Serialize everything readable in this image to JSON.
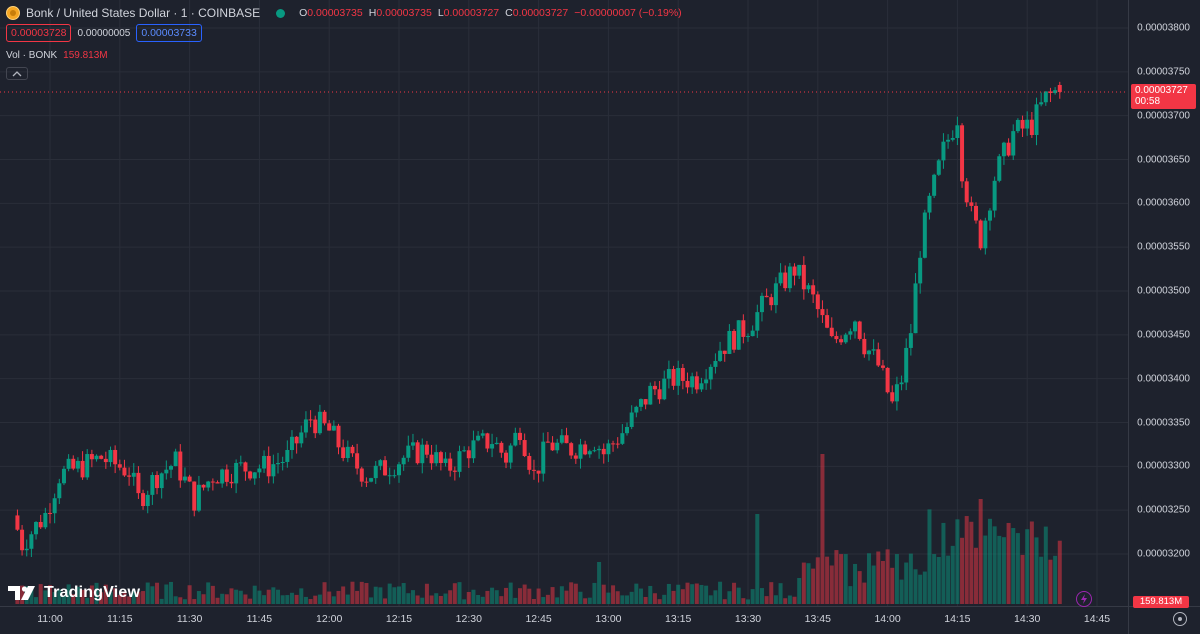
{
  "symbol": {
    "title": "Bonk / United States Dollar · 1 · COINBASE",
    "ohlc": [
      {
        "key": "O",
        "value": "0.00003735"
      },
      {
        "key": "H",
        "value": "0.00003735"
      },
      {
        "key": "L",
        "value": "0.00003727"
      },
      {
        "key": "C",
        "value": "0.00003727"
      }
    ],
    "change": "−0.00000007 (−0.19%)"
  },
  "quote": {
    "sell": "0.00003728",
    "spread": "0.00000005",
    "buy": "0.00003733"
  },
  "volume_legend": {
    "label": "Vol · BONK",
    "value": "159.813M"
  },
  "last_price_tag": {
    "price": "0.00003727",
    "countdown": "00:58"
  },
  "volume_tag": "159.813M",
  "branding": "TradingView",
  "colors": {
    "up": "#089981",
    "down": "#f23645",
    "background": "#1e222d",
    "grid": "#2a2e39",
    "price_line": "#f23645"
  },
  "icons": {
    "logo": "bonk-coin-icon",
    "status": "market-status-dot",
    "collapse": "chevron-up-icon",
    "bolt": "lightning-icon",
    "settings": "settings-icon"
  },
  "chart_data": [
    {
      "type": "candlestick",
      "title": "Bonk / United States Dollar · 1 · COINBASE",
      "price_axis_ticks": [
        "0.00003800",
        "0.00003750",
        "0.00003700",
        "0.00003650",
        "0.00003600",
        "0.00003550",
        "0.00003500",
        "0.00003450",
        "0.00003400",
        "0.00003350",
        "0.00003300",
        "0.00003250",
        "0.00003200"
      ],
      "time_axis_ticks": [
        "11:00",
        "11:15",
        "11:30",
        "11:45",
        "12:00",
        "12:15",
        "12:30",
        "12:45",
        "13:00",
        "13:15",
        "13:30",
        "13:45",
        "14:00",
        "14:15",
        "14:30",
        "14:45"
      ],
      "ylim": [
        3.16e-05,
        3.82e-05
      ],
      "grid": true,
      "last_price": 3.727e-05,
      "keypoints": [
        [
          "10:53",
          3.244e-05
        ],
        [
          "10:55",
          3.212e-05
        ],
        [
          "11:00",
          3.245e-05
        ],
        [
          "11:03",
          3.29e-05
        ],
        [
          "11:08",
          3.3e-05
        ],
        [
          "11:12",
          3.31e-05
        ],
        [
          "11:18",
          3.295e-05
        ],
        [
          "11:20",
          3.262e-05
        ],
        [
          "11:24",
          3.29e-05
        ],
        [
          "11:28",
          3.305e-05
        ],
        [
          "11:32",
          3.262e-05
        ],
        [
          "11:36",
          3.29e-05
        ],
        [
          "11:42",
          3.298e-05
        ],
        [
          "11:48",
          3.3e-05
        ],
        [
          "11:52",
          3.31e-05
        ],
        [
          "11:57",
          3.355e-05
        ],
        [
          "12:01",
          3.34e-05
        ],
        [
          "12:05",
          3.31e-05
        ],
        [
          "12:09",
          3.29e-05
        ],
        [
          "12:12",
          3.295e-05
        ],
        [
          "12:17",
          3.31e-05
        ],
        [
          "12:22",
          3.32e-05
        ],
        [
          "12:26",
          3.295e-05
        ],
        [
          "12:31",
          3.32e-05
        ],
        [
          "12:36",
          3.33e-05
        ],
        [
          "12:39",
          3.31e-05
        ],
        [
          "12:42",
          3.345e-05
        ],
        [
          "12:45",
          3.29e-05
        ],
        [
          "12:48",
          3.325e-05
        ],
        [
          "12:53",
          3.32e-05
        ],
        [
          "12:58",
          3.33e-05
        ],
        [
          "13:00",
          3.315e-05
        ],
        [
          "13:05",
          3.345e-05
        ],
        [
          "13:10",
          3.385e-05
        ],
        [
          "13:15",
          3.4e-05
        ],
        [
          "13:20",
          3.4e-05
        ],
        [
          "13:25",
          3.435e-05
        ],
        [
          "13:31",
          3.46e-05
        ],
        [
          "13:36",
          3.495e-05
        ],
        [
          "13:41",
          3.525e-05
        ],
        [
          "13:45",
          3.49e-05
        ],
        [
          "13:49",
          3.44e-05
        ],
        [
          "13:54",
          3.47e-05
        ],
        [
          "13:56",
          3.44e-05
        ],
        [
          "13:59",
          3.415e-05
        ],
        [
          "14:02",
          3.37e-05
        ],
        [
          "14:04",
          3.4e-05
        ],
        [
          "14:06",
          3.455e-05
        ],
        [
          "14:08",
          3.55e-05
        ],
        [
          "14:10",
          3.6e-05
        ],
        [
          "14:13",
          3.66e-05
        ],
        [
          "14:16",
          3.7e-05
        ],
        [
          "14:17",
          3.64e-05
        ],
        [
          "14:19",
          3.585e-05
        ],
        [
          "14:21",
          3.56e-05
        ],
        [
          "14:24",
          3.63e-05
        ],
        [
          "14:28",
          3.68e-05
        ],
        [
          "14:32",
          3.69e-05
        ],
        [
          "14:35",
          3.72e-05
        ],
        [
          "14:37",
          3.727e-05
        ]
      ],
      "volume": {
        "name": "Vol · BONK",
        "last": "159.813M",
        "spikes": [
          [
            "12:58",
            0.28
          ],
          [
            "13:32",
            0.6
          ],
          [
            "13:46",
            1.0
          ],
          [
            "14:20",
            0.7
          ],
          [
            "14:31",
            0.55
          ]
        ]
      }
    }
  ]
}
